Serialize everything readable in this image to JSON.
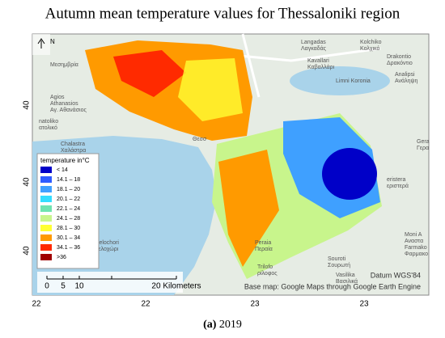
{
  "title": "Autumn mean temperature values for Thessaloniki region",
  "caption": {
    "letter": "(a)",
    "year": "2019"
  },
  "north": "N",
  "lat_labels": [
    "40",
    "40",
    "40"
  ],
  "lon_labels": [
    "22",
    "22",
    "23",
    "23"
  ],
  "legend": {
    "title": "temperature in°C",
    "items": [
      {
        "label": "< 14",
        "color": "#0000c8"
      },
      {
        "label": "14.1 – 18",
        "color": "#2f5cff"
      },
      {
        "label": "18.1 – 20",
        "color": "#3fa0ff"
      },
      {
        "label": "20.1 – 22",
        "color": "#33ddff"
      },
      {
        "label": "22.1 – 24",
        "color": "#6fe3b0"
      },
      {
        "label": "24.1 – 28",
        "color": "#c8f58c"
      },
      {
        "label": "28.1 – 30",
        "color": "#ffff33"
      },
      {
        "label": "30.1 – 34",
        "color": "#ff9a00"
      },
      {
        "label": "34.1 – 36",
        "color": "#ff2a00"
      },
      {
        "label": ">36",
        "color": "#a00000"
      }
    ]
  },
  "scale_bar": [
    "0",
    "5",
    "10",
    "20 Kilometers"
  ],
  "datum": "Datum WGS'84",
  "base_map": "Base map: Google Maps through Google Earth Engine",
  "places": [
    [
      "Langadas",
      "Λαγκαδάς"
    ],
    [
      "Kolchiko",
      "Κολχικό"
    ],
    [
      "Drakontio",
      "Δρακόντιο"
    ],
    [
      "Analipsi",
      "Ανάληψη"
    ],
    [
      "Kavallari",
      "Καβαλλάρι"
    ],
    [
      "Limni Koronia"
    ],
    [
      "Agios",
      "Athanasios",
      "Αγ. Αθανάσιος"
    ],
    [
      "natoliko",
      "ατολικό"
    ],
    [
      "Chalastra",
      "Χαλάστρα"
    ],
    [
      "Peraia",
      "Περαία"
    ],
    [
      "Angelochori",
      "Αγγελοχώρι"
    ],
    [
      "Trilofo",
      "ρίλοφος"
    ],
    [
      "Souroti",
      "Σουρωτή"
    ],
    [
      "Vasilika",
      "Βασιλικά"
    ],
    [
      "Moni A",
      "Αναστα",
      "Farmako",
      "Φαρμακο"
    ],
    [
      "eristera",
      "εριστερά"
    ],
    [
      "Gera",
      "Γερα"
    ],
    [
      "Μεσημβρία"
    ],
    [
      "Θεσσ"
    ]
  ]
}
